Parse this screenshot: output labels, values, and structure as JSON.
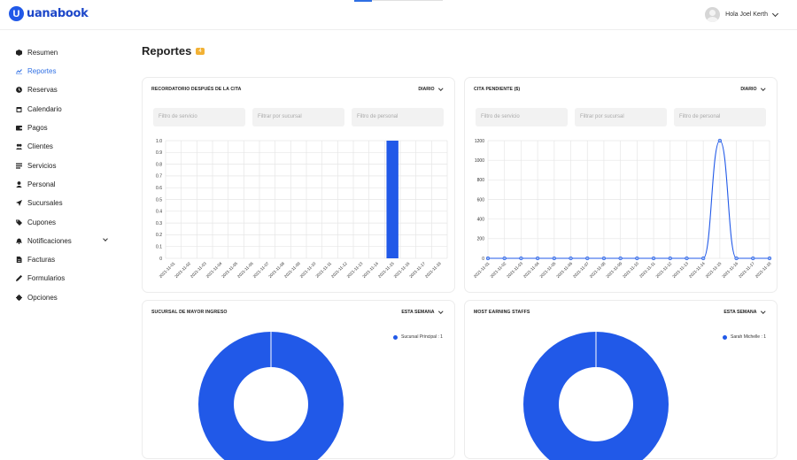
{
  "brand": {
    "name": "uanabook",
    "mark": "U"
  },
  "user": {
    "greeting": "Hola Joel Kerth"
  },
  "sidebar": {
    "items": [
      {
        "label": "Resumen",
        "icon": "cube-icon"
      },
      {
        "label": "Reportes",
        "icon": "chart-line-icon",
        "active": true
      },
      {
        "label": "Reservas",
        "icon": "clock-icon"
      },
      {
        "label": "Calendario",
        "icon": "calendar-icon"
      },
      {
        "label": "Pagos",
        "icon": "wallet-icon"
      },
      {
        "label": "Clientes",
        "icon": "users-icon"
      },
      {
        "label": "Servicios",
        "icon": "list-icon"
      },
      {
        "label": "Personal",
        "icon": "user-icon"
      },
      {
        "label": "Sucursales",
        "icon": "location-arrow-icon"
      },
      {
        "label": "Cupones",
        "icon": "tag-icon"
      },
      {
        "label": "Notificaciones",
        "icon": "bell-icon",
        "expandable": true
      },
      {
        "label": "Facturas",
        "icon": "file-icon"
      },
      {
        "label": "Formularios",
        "icon": "pen-icon"
      },
      {
        "label": "Opciones",
        "icon": "gear-icon"
      }
    ]
  },
  "page": {
    "title": "Reportes",
    "badge": "4"
  },
  "cards": {
    "reminder": {
      "title": "RECORDATORIO DESPUÉS DE LA CITA",
      "period": "DIARIO",
      "filters": [
        "Filtro de servicio",
        "Filtrar por sucursal",
        "Filtro de personal"
      ]
    },
    "pending": {
      "title": "CITA PENDIENTE ($)",
      "period": "DIARIO",
      "filters": [
        "Filtro de servicio",
        "Filtrar por sucursal",
        "Filtro de personal"
      ]
    },
    "branch": {
      "title": "SUCURSAL DE MAYOR INGRESO",
      "period": "ESTA SEMANA",
      "legend": "Sucursal Principal : 1"
    },
    "staff": {
      "title": "MOST EARNING STAFFS",
      "period": "ESTA SEMANA",
      "legend": "Sarah Michelle : 1"
    }
  },
  "chart_data": [
    {
      "type": "bar",
      "categories": [
        "2021-11-01",
        "2021-11-02",
        "2021-11-03",
        "2021-11-04",
        "2021-11-05",
        "2021-11-06",
        "2021-11-07",
        "2021-11-08",
        "2021-11-09",
        "2021-11-10",
        "2021-11-11",
        "2021-11-12",
        "2021-11-13",
        "2021-11-14",
        "2021-11-15",
        "2021-11-16",
        "2021-11-17",
        "2021-11-18"
      ],
      "values": [
        0,
        0,
        0,
        0,
        0,
        0,
        0,
        0,
        0,
        0,
        0,
        0,
        0,
        0,
        1,
        0,
        0,
        0
      ],
      "yticks": [
        "0",
        "0.1",
        "0.2",
        "0.3",
        "0.4",
        "0.5",
        "0.6",
        "0.7",
        "0.8",
        "0.9",
        "1.0"
      ],
      "ylim": [
        0,
        1
      ],
      "color": "#2159e8"
    },
    {
      "type": "line",
      "categories": [
        "2021-11-01",
        "2021-11-02",
        "2021-11-03",
        "2021-11-04",
        "2021-11-05",
        "2021-11-06",
        "2021-11-07",
        "2021-11-08",
        "2021-11-09",
        "2021-11-10",
        "2021-11-11",
        "2021-11-12",
        "2021-11-13",
        "2021-11-14",
        "2021-11-15",
        "2021-11-16",
        "2021-11-17",
        "2021-11-18"
      ],
      "values": [
        0,
        0,
        0,
        0,
        0,
        0,
        0,
        0,
        0,
        0,
        0,
        0,
        0,
        0,
        1200,
        0,
        0,
        0
      ],
      "yticks": [
        "0",
        "200",
        "400",
        "600",
        "800",
        "1000",
        "1200"
      ],
      "ylim": [
        0,
        1200
      ],
      "color": "#2159e8"
    },
    {
      "type": "pie",
      "labels": [
        "Sucursal Principal"
      ],
      "values": [
        1
      ],
      "color": "#2159e8"
    },
    {
      "type": "pie",
      "labels": [
        "Sarah Michelle"
      ],
      "values": [
        1
      ],
      "color": "#2159e8"
    }
  ]
}
